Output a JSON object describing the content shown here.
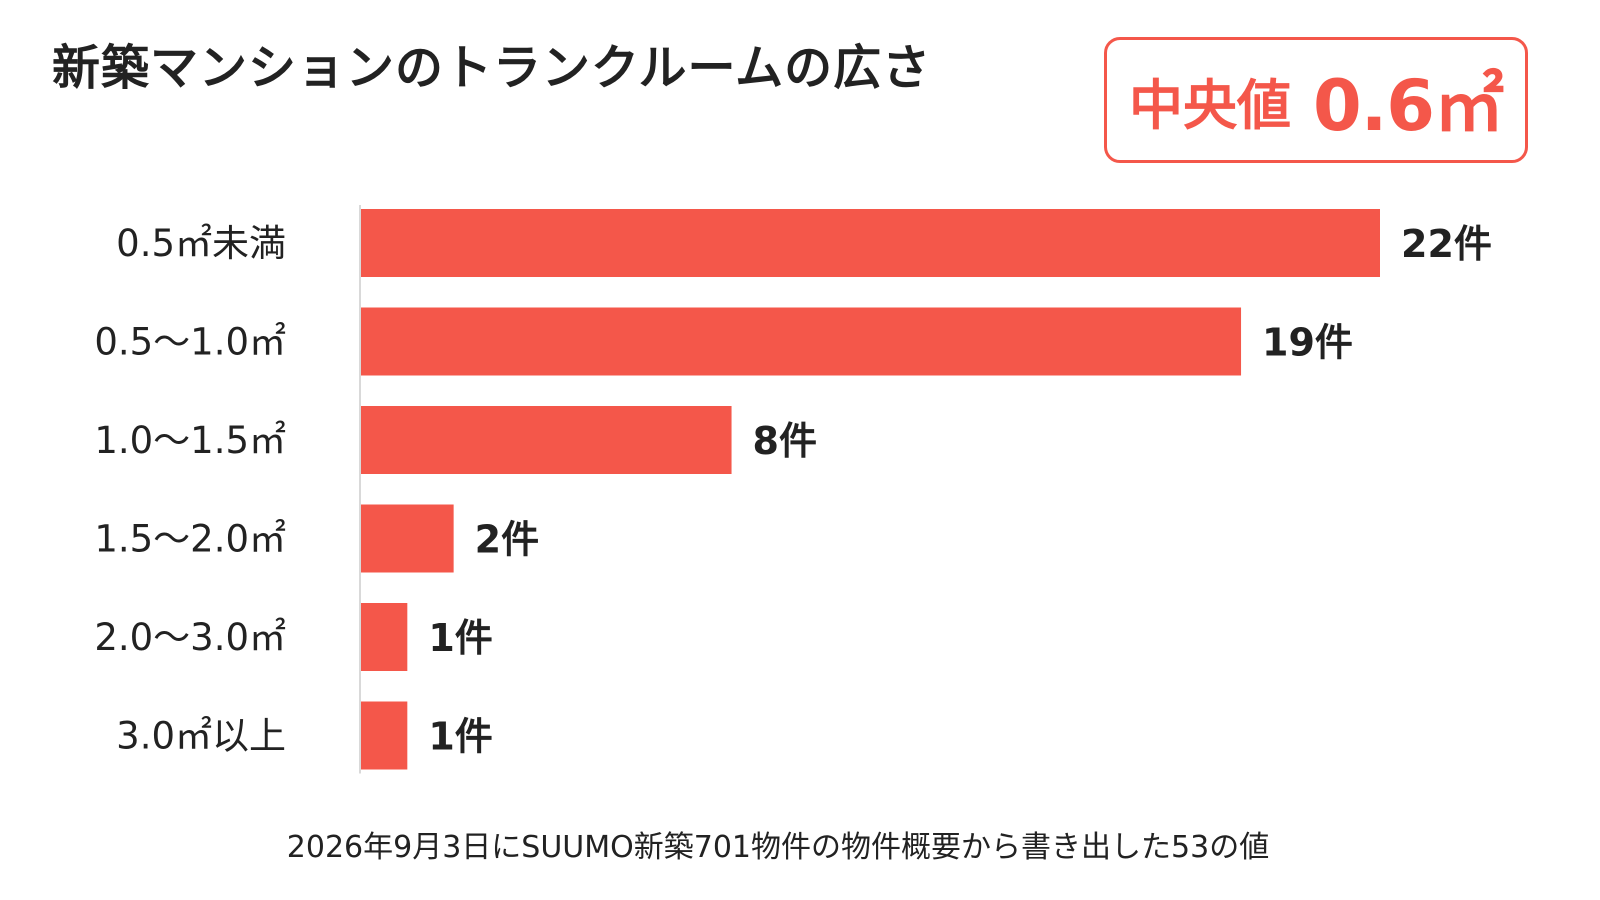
{
  "title": "新築マンションのトランクルームの広さ",
  "median": {
    "label": "中央値",
    "value": "0.6㎡"
  },
  "footnote": "2026年9月3日にSUUMO新築701物件の物件概要から書き出した53の値",
  "chart_data": {
    "type": "bar",
    "orientation": "horizontal",
    "categories": [
      "0.5㎡未満",
      "0.5〜1.0㎡",
      "1.0〜1.5㎡",
      "1.5〜2.0㎡",
      "2.0〜3.0㎡",
      "3.0㎡以上"
    ],
    "values": [
      22,
      19,
      8,
      2,
      1,
      1
    ],
    "data_labels": [
      "22件",
      "19件",
      "8件",
      "2件",
      "1件",
      "1件"
    ],
    "xlim": [
      0,
      22
    ],
    "grid": false,
    "legend": "none",
    "bar_color": "#f4574a",
    "axis_color": "#d9d9d9"
  }
}
